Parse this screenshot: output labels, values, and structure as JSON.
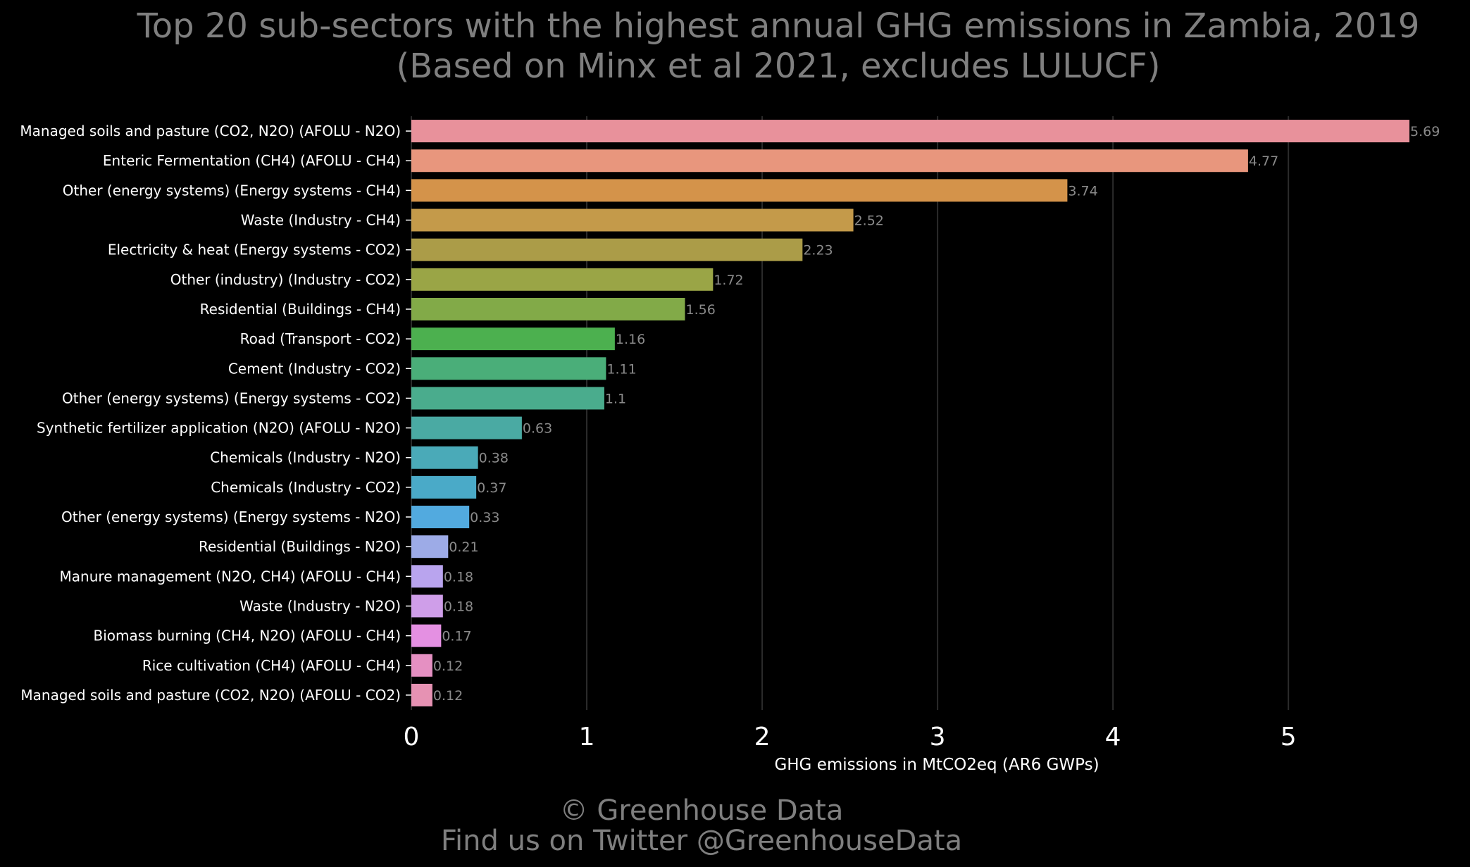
{
  "chart_data": {
    "type": "bar",
    "orientation": "horizontal",
    "title": "Top 20 sub-sectors with the highest annual GHG emissions in Zambia, 2019",
    "subtitle": "(Based on Minx et al 2021, excludes LULUCF)",
    "xlabel": "GHG emissions in MtCO2eq (AR6 GWPs)",
    "ylabel": "",
    "xlim": [
      0,
      5.69
    ],
    "xticks": [
      0,
      1,
      2,
      3,
      4,
      5
    ],
    "grid": true,
    "categories": [
      "Managed soils and pasture (CO2, N2O) (AFOLU - N2O)",
      "Enteric Fermentation (CH4) (AFOLU - CH4)",
      "Other (energy systems) (Energy systems - CH4)",
      "Waste (Industry - CH4)",
      "Electricity & heat (Energy systems - CO2)",
      "Other (industry) (Industry - CO2)",
      "Residential (Buildings - CH4)",
      "Road (Transport - CO2)",
      "Cement (Industry - CO2)",
      "Other (energy systems) (Energy systems - CO2)",
      "Synthetic fertilizer application (N2O) (AFOLU - N2O)",
      "Chemicals (Industry - N2O)",
      "Chemicals (Industry - CO2)",
      "Other (energy systems) (Energy systems - N2O)",
      "Residential (Buildings - N2O)",
      "Manure management (N2O, CH4) (AFOLU - CH4)",
      "Waste (Industry - N2O)",
      "Biomass burning (CH4, N2O) (AFOLU - CH4)",
      "Rice cultivation (CH4) (AFOLU - CH4)",
      "Managed soils and pasture (CO2, N2O) (AFOLU - CO2)"
    ],
    "values": [
      5.69,
      4.77,
      3.74,
      2.52,
      2.23,
      1.72,
      1.56,
      1.16,
      1.11,
      1.1,
      0.63,
      0.38,
      0.37,
      0.33,
      0.21,
      0.18,
      0.18,
      0.17,
      0.12,
      0.12
    ],
    "value_labels": [
      "5.69",
      "4.77",
      "3.74",
      "2.52",
      "2.23",
      "1.72",
      "1.56",
      "1.16",
      "1.11",
      "1.1",
      "0.63",
      "0.38",
      "0.37",
      "0.33",
      "0.21",
      "0.18",
      "0.18",
      "0.17",
      "0.12",
      "0.12"
    ],
    "colors": [
      "#e8919b",
      "#e8967d",
      "#d4934a",
      "#c49a4a",
      "#ab9c48",
      "#9aa546",
      "#82aa48",
      "#4cb04f",
      "#4aae79",
      "#4aac8d",
      "#4aaaa3",
      "#4aaab8",
      "#4aaac8",
      "#52aadf",
      "#9dabe7",
      "#b9a4ee",
      "#cf9ee9",
      "#e490e2",
      "#e590c2",
      "#e692b3"
    ]
  },
  "footer": {
    "line1": "© Greenhouse Data",
    "line2": "Find us on Twitter @GreenhouseData"
  }
}
